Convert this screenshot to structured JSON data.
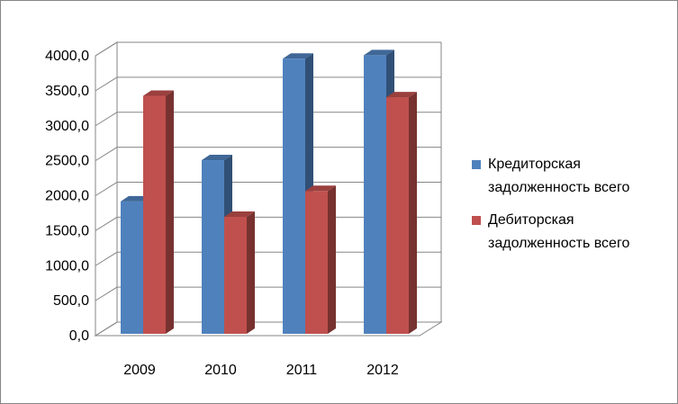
{
  "chart_data": {
    "type": "bar",
    "title": "",
    "xlabel": "",
    "ylabel": "",
    "categories": [
      "2009",
      "2010",
      "2011",
      "2012"
    ],
    "series": [
      {
        "name": "Кредиторская задолженность всего",
        "values": [
          1850,
          2440,
          3890,
          3940
        ],
        "color": "#4F81BD"
      },
      {
        "name": "Дебиторская задолженность всего",
        "values": [
          3360,
          1630,
          2000,
          3340
        ],
        "color": "#C0504D"
      }
    ],
    "ylim": [
      0,
      4000
    ],
    "yticks": [
      "0,0",
      "500,0",
      "1000,0",
      "1500,0",
      "2000,0",
      "2500,0",
      "3000,0",
      "3500,0",
      "4000,0"
    ],
    "grid": true,
    "legend_position": "right",
    "style": "3d-column"
  }
}
